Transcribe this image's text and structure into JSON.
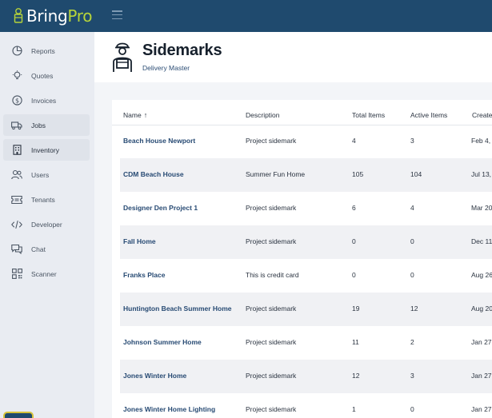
{
  "brand": {
    "name_part1": "Bring",
    "name_part2": "Pro",
    "accent": "#b7d43a",
    "bar_color": "#1f4a6e"
  },
  "sidebar": {
    "items": [
      {
        "label": "Reports",
        "icon": "reports-icon"
      },
      {
        "label": "Quotes",
        "icon": "lightbulb-icon"
      },
      {
        "label": "Invoices",
        "icon": "dollar-icon"
      },
      {
        "label": "Jobs",
        "icon": "truck-icon",
        "active": true
      },
      {
        "label": "Inventory",
        "icon": "building-icon",
        "active": true
      },
      {
        "label": "Users",
        "icon": "users-icon"
      },
      {
        "label": "Tenants",
        "icon": "ticket-icon"
      },
      {
        "label": "Developer",
        "icon": "code-icon"
      },
      {
        "label": "Chat",
        "icon": "chat-icon"
      },
      {
        "label": "Scanner",
        "icon": "qr-icon"
      }
    ]
  },
  "header": {
    "title": "Sidemarks",
    "subtitle": "Delivery Master"
  },
  "table": {
    "columns": {
      "name": "Name",
      "description": "Description",
      "total": "Total Items",
      "active": "Active Items",
      "created": "Create"
    },
    "rows": [
      {
        "name": "Beach House Newport",
        "description": "Project sidemark",
        "total": "4",
        "active": "3",
        "created": "Feb 4,"
      },
      {
        "name": "CDM Beach House",
        "description": "Summer Fun Home",
        "total": "105",
        "active": "104",
        "created": "Jul 13, 2"
      },
      {
        "name": "Designer Den Project 1",
        "description": "Project sidemark",
        "total": "6",
        "active": "4",
        "created": "Mar 20"
      },
      {
        "name": "Fall Home",
        "description": "Project sidemark",
        "total": "0",
        "active": "0",
        "created": "Dec 11,"
      },
      {
        "name": "Franks Place",
        "description": "This is credit card",
        "total": "0",
        "active": "0",
        "created": "Aug 26"
      },
      {
        "name": "Huntington Beach Summer Home",
        "description": "Project sidemark",
        "total": "19",
        "active": "12",
        "created": "Aug 20"
      },
      {
        "name": "Johnson Summer Home",
        "description": "Project sidemark",
        "total": "11",
        "active": "2",
        "created": "Jan 27,"
      },
      {
        "name": "Jones Winter Home",
        "description": "Project sidemark",
        "total": "12",
        "active": "3",
        "created": "Jan 27,"
      },
      {
        "name": "Jones Winter Home Lighting",
        "description": "Project sidemark",
        "total": "1",
        "active": "0",
        "created": "Jan 27,"
      }
    ]
  }
}
